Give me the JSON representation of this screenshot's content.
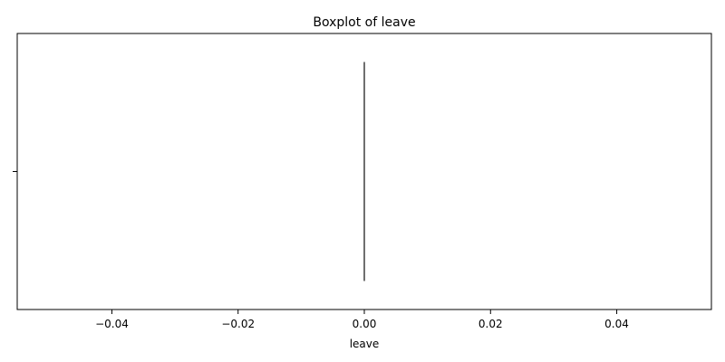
{
  "chart_data": {
    "type": "boxplot",
    "title": "Boxplot of leave",
    "xlabel": "leave",
    "ylabel": "",
    "orientation": "horizontal",
    "xlim": [
      -0.055,
      0.055
    ],
    "x_ticks": [
      -0.04,
      -0.02,
      0.0,
      0.02,
      0.04
    ],
    "x_tick_labels": [
      "−0.04",
      "−0.02",
      "0.00",
      "0.02",
      "0.04"
    ],
    "grid": false,
    "legend": "none",
    "box": {
      "min": 0.0,
      "q1": 0.0,
      "median": 0.0,
      "q3": 0.0,
      "max": 0.0,
      "outliers": []
    },
    "colors": {
      "box_line": "#3f3f3f",
      "axis": "#000000"
    }
  }
}
